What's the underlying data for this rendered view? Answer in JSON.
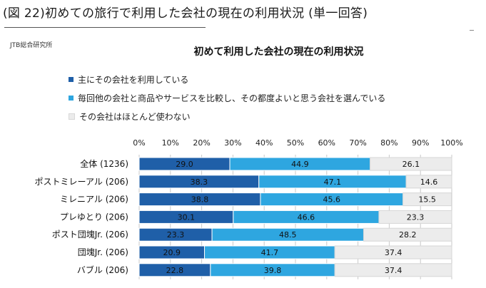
{
  "figure": {
    "caption": "(図 22)初めての旅行で利用した会社の現在の利用状況 (単一回答)",
    "source": "JTB総合研究所"
  },
  "chart_data": {
    "type": "bar",
    "orientation": "horizontal",
    "stacked": true,
    "percent_stacked": true,
    "title": "初めて利用した会社の現在の利用状況",
    "xlim": [
      0,
      100
    ],
    "x_ticks": [
      "0%",
      "10%",
      "20%",
      "30%",
      "40%",
      "50%",
      "60%",
      "70%",
      "80%",
      "90%",
      "100%"
    ],
    "grid": true,
    "legend_position": "top-left",
    "categories": [
      "全体 (1236)",
      "ポストミレーアル (206)",
      "ミレニアル (206)",
      "プレゆとり (206)",
      "ポスト団塊Jr. (206)",
      "団塊Jr. (206)",
      "バブル (206)"
    ],
    "series": [
      {
        "name": "主にその会社を利用している",
        "color": "#1f5fa8",
        "values": [
          29.0,
          38.3,
          38.8,
          30.1,
          23.3,
          20.9,
          22.8
        ]
      },
      {
        "name": "毎回他の会社と商品やサービスを比較し、その都度よいと思う会社を選んでいる",
        "color": "#2ea6e0",
        "values": [
          44.9,
          47.1,
          45.6,
          46.6,
          48.5,
          41.7,
          39.8
        ]
      },
      {
        "name": "その会社はほとんど使わない",
        "color": "#ececec",
        "values": [
          26.1,
          14.6,
          15.5,
          23.3,
          28.2,
          37.4,
          37.4
        ]
      }
    ],
    "value_labels": [
      [
        "29.0",
        "44.9",
        "26.1"
      ],
      [
        "38.3",
        "47.1",
        "14.6"
      ],
      [
        "38.8",
        "45.6",
        "15.5"
      ],
      [
        "30.1",
        "46.6",
        "23.3"
      ],
      [
        "23.3",
        "48.5",
        "28.2"
      ],
      [
        "20.9",
        "41.7",
        "37.4"
      ],
      [
        "22.8",
        "39.8",
        "37.4"
      ]
    ]
  }
}
